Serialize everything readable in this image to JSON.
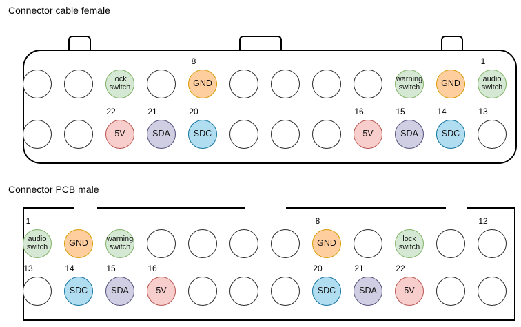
{
  "diagram": {
    "palette": {
      "green": {
        "fill": "#d5e8d4",
        "stroke": "#82b366"
      },
      "orange": {
        "fill": "#ffce9f",
        "stroke": "#d79b00"
      },
      "red": {
        "fill": "#f8cecc",
        "stroke": "#b85450"
      },
      "purple": {
        "fill": "#d0cee2",
        "stroke": "#56517e"
      },
      "blue": {
        "fill": "#b1ddf0",
        "stroke": "#10739e"
      },
      "plain": {
        "fill": "#ffffff",
        "stroke": "#2b2b2b"
      }
    },
    "connectors": [
      {
        "title": "Connector cable female",
        "rows": [
          [
            {},
            {},
            {
              "l": "lock switch",
              "c": "green"
            },
            {},
            {
              "n": "8",
              "l": "GND",
              "c": "orange"
            },
            {},
            {},
            {},
            {},
            {
              "l": "warning switch",
              "c": "green"
            },
            {
              "l": "GND",
              "c": "orange"
            },
            {
              "n": "1",
              "l": "audio switch",
              "c": "green"
            }
          ],
          [
            {},
            {},
            {
              "n": "22",
              "l": "5V",
              "c": "red"
            },
            {
              "n": "21",
              "l": "SDA",
              "c": "purple"
            },
            {
              "n": "20",
              "l": "SDC",
              "c": "blue"
            },
            {},
            {},
            {},
            {
              "n": "16",
              "l": "5V",
              "c": "red"
            },
            {
              "n": "15",
              "l": "SDA",
              "c": "purple"
            },
            {
              "n": "14",
              "l": "SDC",
              "c": "blue"
            },
            {
              "n": "13"
            }
          ]
        ]
      },
      {
        "title": "Connector PCB male",
        "rows": [
          [
            {
              "n": "1",
              "l": "audio switch",
              "c": "green"
            },
            {
              "l": "GND",
              "c": "orange"
            },
            {
              "l": "warning switch",
              "c": "green"
            },
            {},
            {},
            {},
            {},
            {
              "n": "8",
              "l": "GND",
              "c": "orange"
            },
            {},
            {
              "l": "lock switch",
              "c": "green"
            },
            {},
            {
              "n": "12"
            }
          ],
          [
            {
              "n": "13"
            },
            {
              "n": "14",
              "l": "SDC",
              "c": "blue"
            },
            {
              "n": "15",
              "l": "SDA",
              "c": "purple"
            },
            {
              "n": "16",
              "l": "5V",
              "c": "red"
            },
            {},
            {},
            {},
            {
              "n": "20",
              "l": "SDC",
              "c": "blue"
            },
            {
              "n": "21",
              "l": "SDA",
              "c": "purple"
            },
            {
              "n": "22",
              "l": "5V",
              "c": "red"
            },
            {},
            {}
          ]
        ]
      }
    ]
  }
}
